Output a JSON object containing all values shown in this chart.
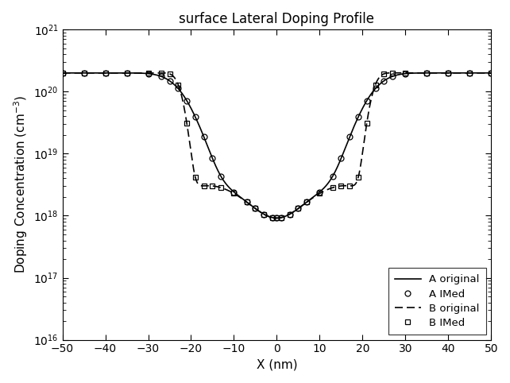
{
  "title": "surface Lateral Doping Profile",
  "xlabel": "X (nm)",
  "ylabel": "Doping Concentration (cm-3)",
  "xlim": [
    -50,
    50
  ],
  "ymin": 1e+16,
  "ymax": 1e+21,
  "background_color": "#ffffff",
  "line_color": "#000000",
  "legend_entries": [
    "A original",
    "A IMed",
    "B original",
    "B IMed"
  ],
  "figsize": [
    6.42,
    4.82
  ],
  "dpi": 100,
  "x_ticks": [
    -50,
    -40,
    -30,
    -20,
    -10,
    0,
    10,
    20,
    30,
    40,
    50
  ]
}
